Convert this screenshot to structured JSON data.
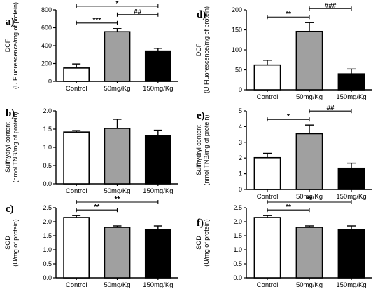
{
  "chart_data": [
    {
      "id": "a",
      "panel_label": "a)",
      "type": "bar",
      "categories": [
        "Control",
        "50mg/Kg",
        "150mg/Kg"
      ],
      "values": [
        150,
        555,
        340
      ],
      "errors": [
        45,
        35,
        30
      ],
      "ylabel_lines": [
        "DCF",
        "(U Fluorescence/mg of protein)"
      ],
      "ylim": [
        0,
        800
      ],
      "yticks": [
        "0",
        "200",
        "400",
        "600",
        "800"
      ],
      "bar_fills": [
        "#ffffff",
        "#a0a0a0",
        "#000000"
      ],
      "significance": [
        {
          "from": 0,
          "to": 2,
          "label": "*"
        },
        {
          "from": 0,
          "to": 1,
          "label": "***"
        },
        {
          "from": 1,
          "to": 2,
          "label": "##"
        }
      ]
    },
    {
      "id": "b",
      "panel_label": "b)",
      "type": "bar",
      "categories": [
        "Control",
        "50mg/Kg",
        "150mg/Kg"
      ],
      "values": [
        1.42,
        1.52,
        1.32
      ],
      "errors": [
        0.04,
        0.25,
        0.15
      ],
      "ylabel_lines": [
        "Sulfhydryl content",
        "(nmol TNB/mg of protein)"
      ],
      "ylim": [
        0,
        2.0
      ],
      "yticks": [
        "0.0",
        "0.5",
        "1.0",
        "1.5",
        "2.0"
      ],
      "bar_fills": [
        "#ffffff",
        "#a0a0a0",
        "#000000"
      ],
      "significance": []
    },
    {
      "id": "c",
      "panel_label": "c)",
      "type": "bar",
      "categories": [
        "Control",
        "50mg/Kg",
        "150mg/Kg"
      ],
      "values": [
        2.15,
        1.8,
        1.73
      ],
      "errors": [
        0.07,
        0.05,
        0.12
      ],
      "ylabel_lines": [
        "SOD",
        "(U/mg of protein)"
      ],
      "ylim": [
        0,
        2.5
      ],
      "yticks": [
        "0.0",
        "0.5",
        "1.0",
        "1.5",
        "2.0",
        "2.5"
      ],
      "bar_fills": [
        "#ffffff",
        "#a0a0a0",
        "#000000"
      ],
      "significance": [
        {
          "from": 0,
          "to": 1,
          "label": "**"
        },
        {
          "from": 0,
          "to": 2,
          "label": "**"
        }
      ]
    },
    {
      "id": "d",
      "panel_label": "d)",
      "type": "bar",
      "categories": [
        "Control",
        "50mg/Kg",
        "150mg/Kg"
      ],
      "values": [
        62,
        146,
        40
      ],
      "errors": [
        12,
        22,
        12
      ],
      "ylabel_lines": [
        "DCF",
        "(U Fluorescence/mg of protein)"
      ],
      "ylim": [
        0,
        200
      ],
      "yticks": [
        "0",
        "50",
        "100",
        "150",
        "200"
      ],
      "bar_fills": [
        "#ffffff",
        "#a0a0a0",
        "#000000"
      ],
      "significance": [
        {
          "from": 0,
          "to": 1,
          "label": "**"
        },
        {
          "from": 1,
          "to": 2,
          "label": "###"
        }
      ]
    },
    {
      "id": "e",
      "panel_label": "e)",
      "type": "bar",
      "categories": [
        "Control",
        "50mg/Kg",
        "150mg/Kg"
      ],
      "values": [
        2.02,
        3.55,
        1.35
      ],
      "errors": [
        0.28,
        0.55,
        0.32
      ],
      "ylabel_lines": [
        "Sulfhydryl content",
        "(nmol TNB/mg of protein)"
      ],
      "ylim": [
        0,
        5
      ],
      "yticks": [
        "0",
        "1",
        "2",
        "3",
        "4",
        "5"
      ],
      "bar_fills": [
        "#ffffff",
        "#a0a0a0",
        "#000000"
      ],
      "significance": [
        {
          "from": 0,
          "to": 1,
          "label": "*"
        },
        {
          "from": 1,
          "to": 2,
          "label": "##"
        }
      ]
    },
    {
      "id": "f",
      "panel_label": "f)",
      "type": "bar",
      "categories": [
        "Control",
        "50mg/Kg",
        "150mg/Kg"
      ],
      "values": [
        2.15,
        1.8,
        1.73
      ],
      "errors": [
        0.07,
        0.05,
        0.12
      ],
      "ylabel_lines": [
        "SOD",
        "(U/mg of protein)"
      ],
      "ylim": [
        0,
        2.5
      ],
      "yticks": [
        "0.0",
        "0.5",
        "1.0",
        "1.5",
        "2.0",
        "2.5"
      ],
      "bar_fills": [
        "#ffffff",
        "#a0a0a0",
        "#000000"
      ],
      "significance": [
        {
          "from": 0,
          "to": 1,
          "label": "**"
        },
        {
          "from": 0,
          "to": 2,
          "label": "**"
        }
      ]
    }
  ]
}
